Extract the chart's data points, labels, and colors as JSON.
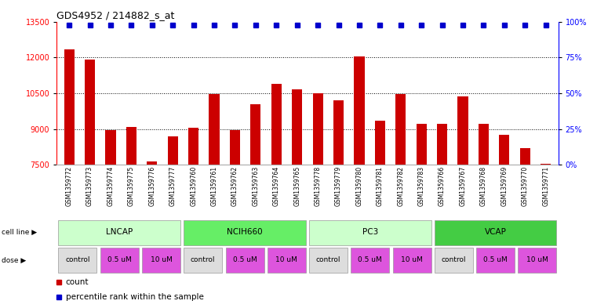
{
  "title": "GDS4952 / 214882_s_at",
  "samples": [
    "GSM1359772",
    "GSM1359773",
    "GSM1359774",
    "GSM1359775",
    "GSM1359776",
    "GSM1359777",
    "GSM1359760",
    "GSM1359761",
    "GSM1359762",
    "GSM1359763",
    "GSM1359764",
    "GSM1359765",
    "GSM1359778",
    "GSM1359779",
    "GSM1359780",
    "GSM1359781",
    "GSM1359782",
    "GSM1359783",
    "GSM1359766",
    "GSM1359767",
    "GSM1359768",
    "GSM1359769",
    "GSM1359770",
    "GSM1359771"
  ],
  "counts": [
    12350,
    11900,
    8950,
    9100,
    7650,
    8700,
    9050,
    10450,
    8950,
    10050,
    10900,
    10650,
    10500,
    10200,
    12050,
    9350,
    10450,
    9200,
    9200,
    10350,
    9200,
    8750,
    8200,
    7550
  ],
  "bar_color": "#cc0000",
  "dot_color": "#0000cc",
  "ylim_left": [
    7500,
    13500
  ],
  "yticks_left": [
    7500,
    9000,
    10500,
    12000,
    13500
  ],
  "ylim_right": [
    0,
    100
  ],
  "yticks_right": [
    0,
    25,
    50,
    75,
    100
  ],
  "yticklabels_right": [
    "0%",
    "25%",
    "50%",
    "75%",
    "100%"
  ],
  "cell_lines": [
    {
      "name": "LNCAP",
      "start": 0,
      "end": 6,
      "color_light": "#ccffcc",
      "color_dark": "#88ee88"
    },
    {
      "name": "NCIH660",
      "start": 6,
      "end": 12,
      "color_light": "#77dd77",
      "color_dark": "#44bb44"
    },
    {
      "name": "PC3",
      "start": 12,
      "end": 18,
      "color_light": "#ccffcc",
      "color_dark": "#88ee88"
    },
    {
      "name": "VCAP",
      "start": 18,
      "end": 24,
      "color_light": "#55cc55",
      "color_dark": "#22aa22"
    }
  ],
  "dose_groups": [
    {
      "name": "control",
      "start": 0,
      "end": 2,
      "bg": "#dddddd"
    },
    {
      "name": "0.5 uM",
      "start": 2,
      "end": 4,
      "bg": "#dd55dd"
    },
    {
      "name": "10 uM",
      "start": 4,
      "end": 6,
      "bg": "#dd55dd"
    },
    {
      "name": "control",
      "start": 6,
      "end": 8,
      "bg": "#dddddd"
    },
    {
      "name": "0.5 uM",
      "start": 8,
      "end": 10,
      "bg": "#dd55dd"
    },
    {
      "name": "10 uM",
      "start": 10,
      "end": 12,
      "bg": "#dd55dd"
    },
    {
      "name": "control",
      "start": 12,
      "end": 14,
      "bg": "#dddddd"
    },
    {
      "name": "0.5 uM",
      "start": 14,
      "end": 16,
      "bg": "#dd55dd"
    },
    {
      "name": "10 uM",
      "start": 16,
      "end": 18,
      "bg": "#dd55dd"
    },
    {
      "name": "control",
      "start": 18,
      "end": 20,
      "bg": "#dddddd"
    },
    {
      "name": "0.5 uM",
      "start": 20,
      "end": 22,
      "bg": "#dd55dd"
    },
    {
      "name": "10 uM",
      "start": 22,
      "end": 24,
      "bg": "#dd55dd"
    }
  ],
  "bg_color": "#ffffff"
}
